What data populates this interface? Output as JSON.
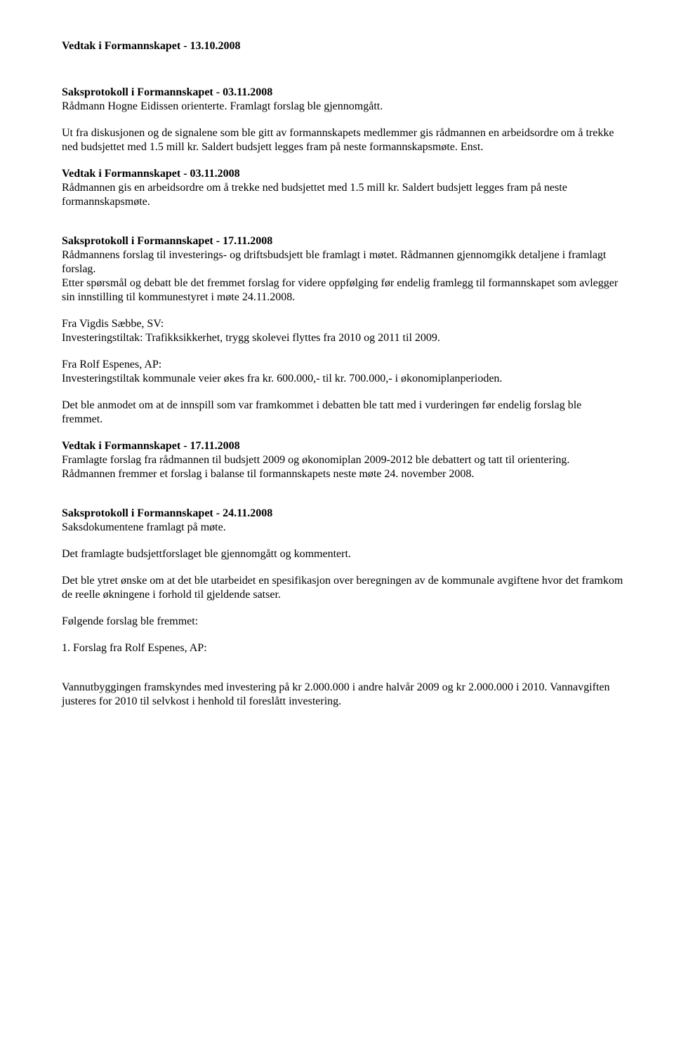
{
  "h1": "Vedtak i Formannskapet - 13.10.2008",
  "s1_title": "Saksprotokoll i Formannskapet - 03.11.2008",
  "s1_p1": "Rådmann Hogne Eidissen orienterte. Framlagt forslag ble gjennomgått.",
  "s1_p2": "Ut fra diskusjonen og de signalene som ble gitt av formannskapets medlemmer gis rådmannen en arbeidsordre om å trekke ned budsjettet med 1.5 mill kr. Saldert budsjett legges fram på neste formannskapsmøte. Enst.",
  "s2_title": "Vedtak i Formannskapet - 03.11.2008",
  "s2_p1": "Rådmannen gis en arbeidsordre om å trekke ned budsjettet med 1.5 mill kr. Saldert budsjett legges fram på neste formannskapsmøte.",
  "s3_title": "Saksprotokoll i Formannskapet - 17.11.2008",
  "s3_p1": "Rådmannens forslag til investerings- og driftsbudsjett ble framlagt i møtet. Rådmannen gjennomgikk detaljene i framlagt forslag.",
  "s3_p2": "Etter spørsmål og debatt ble det fremmet forslag for videre oppfølging før endelig framlegg til formannskapet som avlegger sin innstilling til kommunestyret i møte 24.11.2008.",
  "s3_p3a": "Fra Vigdis Sæbbe, SV:",
  "s3_p3b": "Investeringstiltak: Trafikksikkerhet, trygg skolevei flyttes fra 2010 og 2011 til 2009.",
  "s3_p4a": "Fra Rolf Espenes, AP:",
  "s3_p4b": "Investeringstiltak kommunale veier økes fra kr. 600.000,- til kr. 700.000,- i økonomiplanperioden.",
  "s3_p5": "Det ble anmodet om at de innspill som var framkommet i debatten ble tatt med i vurderingen før endelig forslag ble fremmet.",
  "s4_title": "Vedtak i Formannskapet - 17.11.2008",
  "s4_p1": "Framlagte forslag fra rådmannen til budsjett 2009 og økonomiplan 2009-2012 ble debattert og tatt til orientering. Rådmannen fremmer et forslag i balanse til formannskapets neste møte 24. november 2008.",
  "s5_title": "Saksprotokoll i Formannskapet - 24.11.2008",
  "s5_p1": "Saksdokumentene framlagt på møte.",
  "s5_p2": "Det framlagte budsjettforslaget ble gjennomgått og kommentert.",
  "s5_p3": "Det ble ytret ønske om at det ble utarbeidet en spesifikasjon over beregningen av de kommunale avgiftene hvor det framkom de reelle økningene i forhold til gjeldende satser.",
  "s5_p4": "Følgende forslag ble fremmet:",
  "s5_p5": "1. Forslag fra Rolf Espenes, AP:",
  "s5_p6": "Vannutbyggingen framskyndes med investering på kr 2.000.000 i andre halvår 2009 og kr 2.000.000 i 2010. Vannavgiften justeres for 2010 til selvkost i henhold til foreslått investering."
}
